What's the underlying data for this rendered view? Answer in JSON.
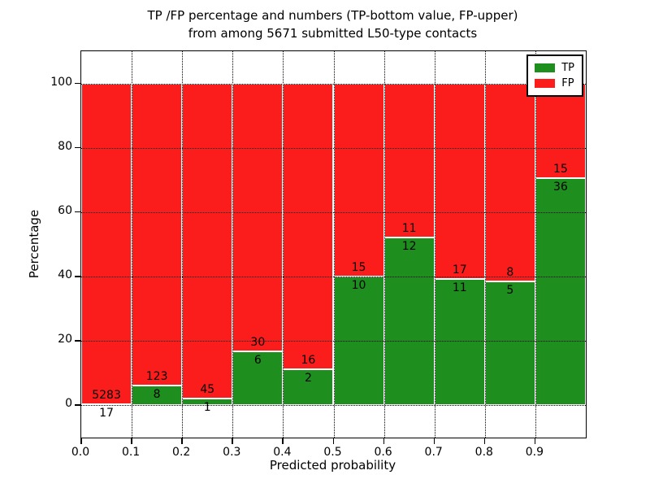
{
  "title": {
    "line1": "TP /FP percentage and numbers (TP-bottom value, FP-upper)",
    "line2": "from among 5671 submitted L50-type contacts"
  },
  "axes": {
    "xlabel": "Predicted probability",
    "ylabel": "Percentage",
    "x_tick_labels": [
      "0.0",
      "0.1",
      "0.2",
      "0.3",
      "0.4",
      "0.5",
      "0.6",
      "0.7",
      "0.8",
      "0.9"
    ],
    "y_tick_labels": [
      "0",
      "20",
      "40",
      "60",
      "80",
      "100"
    ]
  },
  "legend": {
    "items": [
      {
        "label": "TP",
        "color": "#1e8e1e"
      },
      {
        "label": "FP",
        "color": "#fb1c1c"
      }
    ]
  },
  "chart_data": {
    "type": "bar",
    "stacked": true,
    "title": "TP /FP percentage and numbers (TP-bottom value, FP-upper) from among 5671 submitted L50-type contacts",
    "xlabel": "Predicted probability",
    "ylabel": "Percentage",
    "xlim": [
      0,
      1
    ],
    "ylim": [
      -10,
      110
    ],
    "grid": "dotted",
    "legend_position": "upper right",
    "total_contacts": 5671,
    "units": "percent of bin total; TP and FP counts annotated (TP below boundary, FP above)",
    "series": [
      {
        "name": "TP",
        "color": "#1e8e1e"
      },
      {
        "name": "FP",
        "color": "#fb1c1c"
      }
    ],
    "bins": [
      {
        "range": [
          0.0,
          0.1
        ],
        "tp": 17,
        "fp": 5283
      },
      {
        "range": [
          0.1,
          0.2
        ],
        "tp": 8,
        "fp": 123
      },
      {
        "range": [
          0.2,
          0.3
        ],
        "tp": 1,
        "fp": 45
      },
      {
        "range": [
          0.3,
          0.4
        ],
        "tp": 6,
        "fp": 30
      },
      {
        "range": [
          0.4,
          0.5
        ],
        "tp": 2,
        "fp": 16
      },
      {
        "range": [
          0.5,
          0.6
        ],
        "tp": 10,
        "fp": 15
      },
      {
        "range": [
          0.6,
          0.7
        ],
        "tp": 12,
        "fp": 11
      },
      {
        "range": [
          0.7,
          0.8
        ],
        "tp": 11,
        "fp": 17
      },
      {
        "range": [
          0.8,
          0.9
        ],
        "tp": 5,
        "fp": 8
      },
      {
        "range": [
          0.9,
          1.0
        ],
        "tp": 36,
        "fp": 15
      }
    ]
  }
}
